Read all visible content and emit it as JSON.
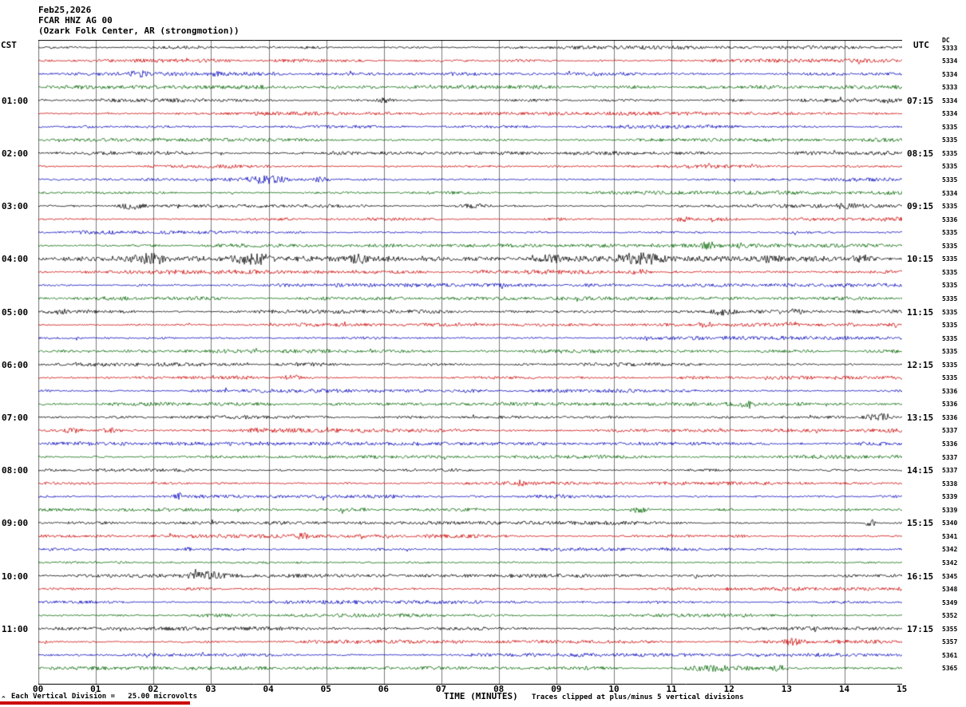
{
  "header": {
    "date": "Feb25,2026",
    "station": "FCAR HNZ AG 00",
    "location": "(Ozark Folk Center, AR (strongmotion))",
    "left_tz": "CST",
    "right_tz": "UTC",
    "dc_header": "DC"
  },
  "axes": {
    "xlabel": "TIME (MINUTES)",
    "x_ticks": [
      "00",
      "01",
      "02",
      "03",
      "04",
      "05",
      "06",
      "07",
      "08",
      "09",
      "10",
      "11",
      "12",
      "13",
      "14",
      "15"
    ]
  },
  "footer": {
    "marker": "^",
    "scale_note": "Each Vertical Division =   25.00 microvolts",
    "xlabel": "TIME (MINUTES)",
    "clip_note": "Traces clipped at plus/minus 5 vertical divisions"
  },
  "chart_data": {
    "type": "line",
    "variant": "helicorder-seismogram",
    "title": "FCAR HNZ AG 00 (Ozark Folk Center, AR (strongmotion)) Feb25,2026",
    "xlabel": "TIME (MINUTES)",
    "x_range": [
      0,
      15
    ],
    "minutes_per_line": 15,
    "grid_on": true,
    "grid_color": "#7a7a7a",
    "trace_color_cycle": [
      "#000000",
      "#cc0000",
      "#0000bb",
      "#006600"
    ],
    "left_axis_tz": "CST",
    "right_axis_tz": "UTC",
    "rows": [
      {
        "dc": "5333"
      },
      {
        "dc": "5334"
      },
      {
        "dc": "5334",
        "bursts": [
          [
            1.55,
            1.95,
            2.0
          ],
          [
            2.9,
            3.3,
            1.8
          ]
        ]
      },
      {
        "dc": "5333"
      },
      {
        "cst": "01:00",
        "utc": "07:15",
        "dc": "5334",
        "bursts": [
          [
            5.85,
            6.25,
            2.2
          ],
          [
            14.6,
            14.95,
            1.8
          ]
        ]
      },
      {
        "dc": "5334"
      },
      {
        "dc": "5335"
      },
      {
        "dc": "5335"
      },
      {
        "cst": "02:00",
        "utc": "08:15",
        "dc": "5335",
        "bursts": [
          [
            3.0,
            3.25,
            1.8
          ]
        ]
      },
      {
        "dc": "5335"
      },
      {
        "dc": "5335",
        "bursts": [
          [
            3.55,
            4.45,
            3.8
          ],
          [
            4.7,
            5.15,
            2.2
          ]
        ]
      },
      {
        "dc": "5334"
      },
      {
        "cst": "03:00",
        "utc": "09:15",
        "dc": "5335",
        "bursts": [
          [
            1.35,
            1.85,
            2.6
          ],
          [
            7.25,
            7.95,
            2.6
          ],
          [
            13.75,
            14.25,
            2.2
          ]
        ]
      },
      {
        "dc": "5336",
        "bursts": [
          [
            11.0,
            11.35,
            2.6
          ]
        ]
      },
      {
        "dc": "5335"
      },
      {
        "dc": "5335",
        "bursts": [
          [
            11.45,
            11.85,
            3.0
          ],
          [
            12.1,
            12.4,
            2.0
          ]
        ]
      },
      {
        "cst": "04:00",
        "utc": "10:15",
        "dc": "5335",
        "amp": 1.8,
        "bursts": [
          [
            1.55,
            2.35,
            4.5
          ],
          [
            3.3,
            4.15,
            5.5
          ],
          [
            5.35,
            5.85,
            3.5
          ],
          [
            8.45,
            9.25,
            4.0
          ],
          [
            9.95,
            10.95,
            4.5
          ],
          [
            12.45,
            12.95,
            2.8
          ],
          [
            14.1,
            14.5,
            2.5
          ]
        ]
      },
      {
        "dc": "5335",
        "amp": 1.5,
        "bursts": [
          [
            10.2,
            10.65,
            1.8
          ]
        ]
      },
      {
        "dc": "5335"
      },
      {
        "dc": "5335"
      },
      {
        "cst": "05:00",
        "utc": "11:15",
        "dc": "5335",
        "bursts": [
          [
            0.0,
            0.6,
            2.8
          ],
          [
            11.65,
            12.15,
            3.2
          ],
          [
            12.95,
            13.35,
            2.2
          ]
        ]
      },
      {
        "dc": "5335",
        "bursts": [
          [
            11.35,
            11.75,
            2.2
          ],
          [
            12.85,
            13.25,
            2.2
          ],
          [
            14.0,
            14.3,
            1.8
          ]
        ]
      },
      {
        "dc": "5335"
      },
      {
        "dc": "5335"
      },
      {
        "cst": "06:00",
        "utc": "12:15",
        "dc": "5335"
      },
      {
        "dc": "5335",
        "bursts": [
          [
            4.15,
            4.65,
            2.6
          ]
        ]
      },
      {
        "dc": "5336"
      },
      {
        "dc": "5336",
        "bursts": [
          [
            12.1,
            12.5,
            2.0
          ]
        ]
      },
      {
        "cst": "07:00",
        "utc": "13:15",
        "dc": "5336",
        "bursts": [
          [
            14.25,
            14.95,
            4.0
          ]
        ]
      },
      {
        "dc": "5337",
        "amp": 1.6,
        "bursts": [
          [
            0.35,
            0.85,
            2.2
          ],
          [
            1.05,
            1.45,
            1.8
          ]
        ]
      },
      {
        "dc": "5336"
      },
      {
        "dc": "5337"
      },
      {
        "cst": "08:00",
        "utc": "14:15",
        "dc": "5337"
      },
      {
        "dc": "5338",
        "bursts": [
          [
            8.25,
            8.45,
            3.5
          ]
        ]
      },
      {
        "dc": "5339",
        "bursts": [
          [
            2.3,
            2.55,
            4.0
          ]
        ]
      },
      {
        "dc": "5339",
        "bursts": [
          [
            10.25,
            10.65,
            2.8
          ]
        ]
      },
      {
        "cst": "09:00",
        "utc": "15:15",
        "dc": "5340",
        "bursts": [
          [
            14.35,
            14.55,
            5.0
          ]
        ]
      },
      {
        "dc": "5341",
        "bursts": [
          [
            4.35,
            4.85,
            2.6
          ],
          [
            5.55,
            5.7,
            2.0
          ]
        ]
      },
      {
        "dc": "5342",
        "bursts": [
          [
            2.5,
            2.7,
            1.8
          ]
        ]
      },
      {
        "dc": "5342"
      },
      {
        "cst": "10:00",
        "utc": "16:15",
        "dc": "5345",
        "bursts": [
          [
            2.45,
            3.35,
            3.6
          ],
          [
            11.3,
            11.55,
            2.0
          ]
        ]
      },
      {
        "dc": "5348"
      },
      {
        "dc": "5349"
      },
      {
        "dc": "5352"
      },
      {
        "cst": "11:00",
        "utc": "17:15",
        "dc": "5355"
      },
      {
        "dc": "5357",
        "bursts": [
          [
            12.85,
            13.35,
            2.2
          ]
        ]
      },
      {
        "dc": "5361"
      },
      {
        "dc": "5365",
        "bursts": [
          [
            10.95,
            12.65,
            3.6
          ],
          [
            12.65,
            13.05,
            2.2
          ]
        ]
      }
    ]
  }
}
